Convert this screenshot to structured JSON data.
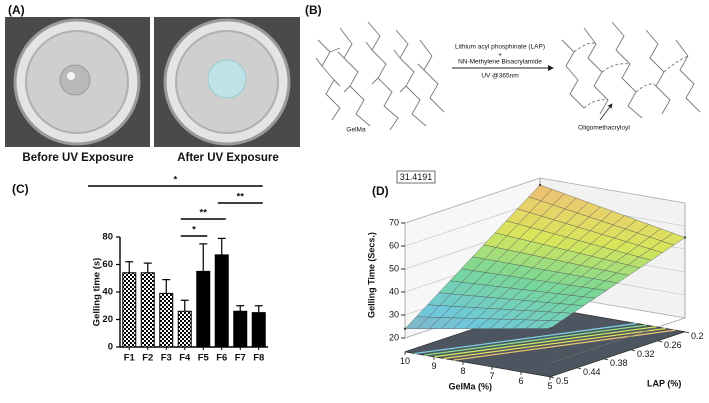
{
  "panels": {
    "a": {
      "label": "(A)",
      "captions": [
        "Before UV Exposure",
        "After UV Exposure"
      ]
    },
    "b": {
      "label": "(B)",
      "gelma": "GelMa",
      "reagent1": "Lithium acyl phosphinate (LAP)",
      "plus": "+",
      "reagent2": "NN-Methylene Bisacrylamide",
      "condition": "UV @365nm",
      "product": "Oligomethacryloyl"
    },
    "c": {
      "label": "(C)"
    },
    "d": {
      "label": "(D)"
    }
  },
  "chart_data": [
    {
      "type": "bar",
      "y_label": "Gelling time (s)",
      "categories": [
        "F1",
        "F2",
        "F3",
        "F4",
        "F5",
        "F6",
        "F7",
        "F8"
      ],
      "values": [
        54,
        54,
        39,
        26,
        55,
        67,
        26,
        25
      ],
      "errors": [
        8,
        7,
        10,
        8,
        20,
        12,
        4,
        5
      ],
      "fills": [
        "checker",
        "checker",
        "checker",
        "checker",
        "solid",
        "solid",
        "solid",
        "solid"
      ],
      "color": "#000000",
      "ylim": [
        0,
        80
      ],
      "yticks": [
        0,
        20,
        40,
        60,
        80
      ],
      "significance": [
        {
          "text": "*",
          "from": "F1",
          "to": "F8"
        },
        {
          "text": "**",
          "from": "F6",
          "to": "F8"
        },
        {
          "text": "**",
          "from": "F4",
          "to": "F6"
        },
        {
          "text": "*",
          "from": "F4",
          "to": "F5"
        }
      ]
    },
    {
      "type": "surface",
      "x_label": "GelMa (%)",
      "y_label": "LAP (%)",
      "z_label": "Gelling Time (Secs.)",
      "annotation": "31.4191",
      "x": [
        10,
        5
      ],
      "y": [
        0.5,
        0.2
      ],
      "z": [
        [
          24,
          35
        ],
        [
          67,
          55
        ]
      ],
      "xlim": [
        10,
        5
      ],
      "xticks": [
        10,
        9,
        8,
        7,
        6,
        5
      ],
      "ylim": [
        0.5,
        0.2
      ],
      "yticks": [
        0.5,
        0.44,
        0.38,
        0.32,
        0.26,
        0.2
      ],
      "zlim": [
        20,
        70
      ],
      "zticks": [
        20,
        30,
        40,
        50,
        60,
        70
      ]
    }
  ]
}
